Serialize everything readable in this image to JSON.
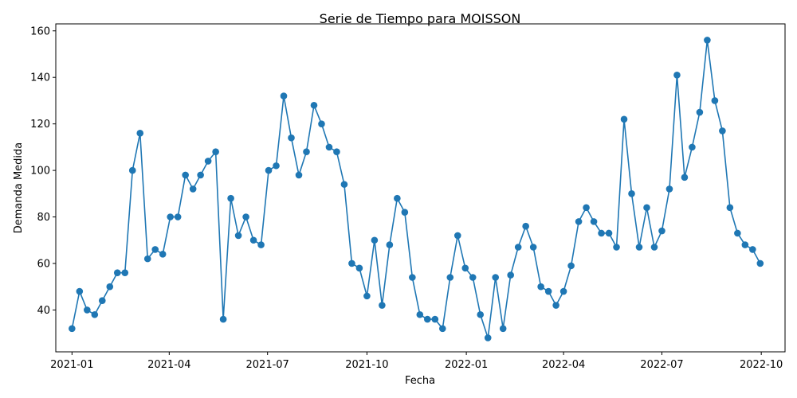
{
  "chart_data": {
    "type": "line",
    "title": "Serie de Tiempo para MOISSON",
    "xlabel": "Fecha",
    "ylabel": "Demanda Medida",
    "x_ticks": [
      "2021-01",
      "2021-04",
      "2021-07",
      "2021-10",
      "2022-01",
      "2022-04",
      "2022-07",
      "2022-10"
    ],
    "y_ticks": [
      40,
      60,
      80,
      100,
      120,
      140,
      160
    ],
    "ylim": [
      22,
      163
    ],
    "xlim": [
      "2020-12-17",
      "2022-10-23"
    ],
    "grid": false,
    "marker": "circle",
    "color": "#1f77b4",
    "series": [
      {
        "x": [
          "2021-01-01",
          "2021-01-08",
          "2021-01-15",
          "2021-01-22",
          "2021-01-29",
          "2021-02-05",
          "2021-02-12",
          "2021-02-19",
          "2021-02-26",
          "2021-03-05",
          "2021-03-12",
          "2021-03-19",
          "2021-03-26",
          "2021-04-02",
          "2021-04-09",
          "2021-04-16",
          "2021-04-23",
          "2021-04-30",
          "2021-05-07",
          "2021-05-14",
          "2021-05-21",
          "2021-05-28",
          "2021-06-04",
          "2021-06-11",
          "2021-06-18",
          "2021-06-25",
          "2021-07-02",
          "2021-07-09",
          "2021-07-16",
          "2021-07-23",
          "2021-07-30",
          "2021-08-06",
          "2021-08-13",
          "2021-08-20",
          "2021-08-27",
          "2021-09-03",
          "2021-09-10",
          "2021-09-17",
          "2021-09-24",
          "2021-10-01",
          "2021-10-08",
          "2021-10-15",
          "2021-10-22",
          "2021-10-29",
          "2021-11-05",
          "2021-11-12",
          "2021-11-19",
          "2021-11-26",
          "2021-12-03",
          "2021-12-10",
          "2021-12-17",
          "2021-12-24",
          "2021-12-31",
          "2022-01-07",
          "2022-01-14",
          "2022-01-21",
          "2022-01-28",
          "2022-02-04",
          "2022-02-11",
          "2022-02-18",
          "2022-02-25",
          "2022-03-04",
          "2022-03-11",
          "2022-03-18",
          "2022-03-25",
          "2022-04-01",
          "2022-04-08",
          "2022-04-15",
          "2022-04-22",
          "2022-04-29",
          "2022-05-06",
          "2022-05-13",
          "2022-05-20",
          "2022-05-27",
          "2022-06-03",
          "2022-06-10",
          "2022-06-17",
          "2022-06-24",
          "2022-07-01",
          "2022-07-08",
          "2022-07-15",
          "2022-07-22",
          "2022-07-29",
          "2022-08-05",
          "2022-08-12",
          "2022-08-19",
          "2022-08-26",
          "2022-09-02",
          "2022-09-09",
          "2022-09-16",
          "2022-09-23",
          "2022-09-30"
        ],
        "y": [
          32,
          48,
          40,
          38,
          44,
          50,
          56,
          56,
          100,
          116,
          62,
          66,
          64,
          80,
          80,
          98,
          92,
          98,
          104,
          108,
          36,
          88,
          72,
          80,
          70,
          68,
          100,
          102,
          132,
          114,
          98,
          108,
          128,
          120,
          110,
          108,
          94,
          60,
          58,
          46,
          70,
          42,
          68,
          88,
          82,
          54,
          38,
          36,
          36,
          32,
          54,
          72,
          58,
          54,
          38,
          28,
          54,
          32,
          55,
          67,
          76,
          67,
          50,
          48,
          42,
          48,
          59,
          78,
          84,
          78,
          73,
          73,
          67,
          122,
          90,
          67,
          84,
          67,
          74,
          92,
          141,
          97,
          110,
          125,
          156,
          130,
          117,
          84,
          73,
          68,
          66,
          60
        ]
      }
    ]
  }
}
